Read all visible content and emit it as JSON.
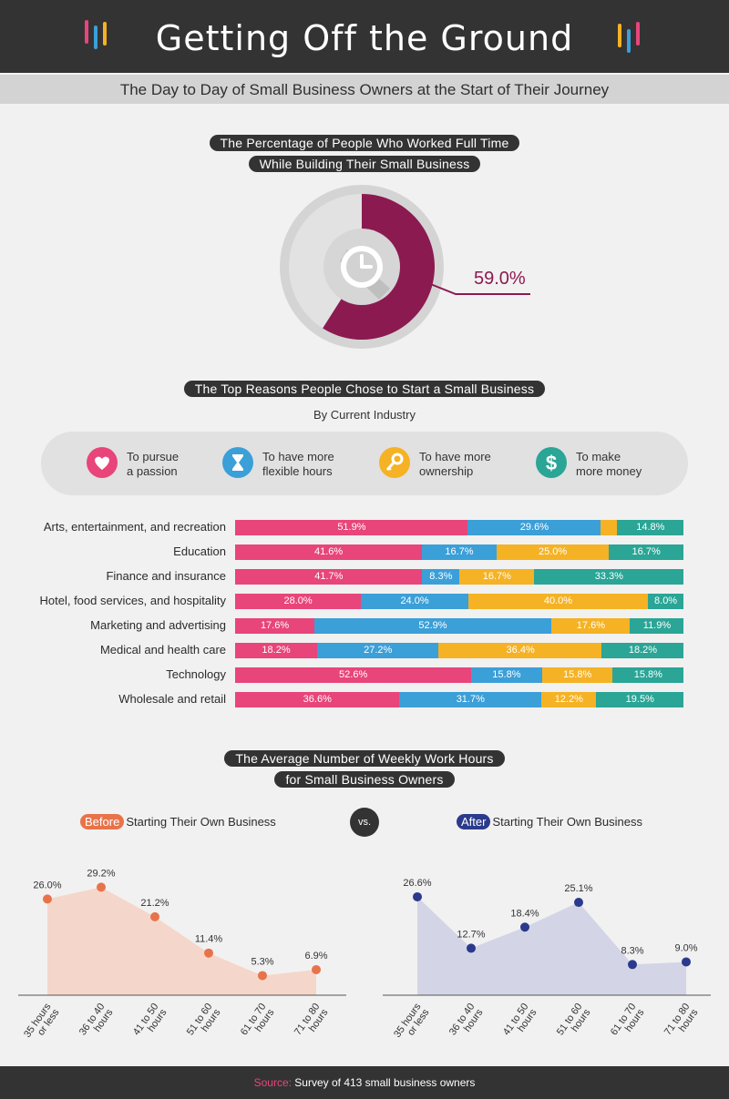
{
  "header": {
    "title": "Getting Off the Ground",
    "subtitle": "The Day to Day of Small Business Owners at the Start of Their Journey",
    "deco_colors": [
      "#e8457a",
      "#3b9fd8",
      "#f5b224",
      "#2aa596"
    ]
  },
  "section1": {
    "title_line1": "The Percentage of People Who Worked Full Time",
    "title_line2": "While Building Their Small Business"
  },
  "section2": {
    "title": "The Top Reasons People Chose to Start a Small Business",
    "subtitle": "By Current Industry",
    "legend": [
      {
        "line1": "To pursue",
        "line2": "a passion",
        "icon": "heart-icon",
        "color": "#e8457a"
      },
      {
        "line1": "To have more",
        "line2": "flexible hours",
        "icon": "hourglass-icon",
        "color": "#3b9fd8"
      },
      {
        "line1": "To have more",
        "line2": "ownership",
        "icon": "key-icon",
        "color": "#f5b224"
      },
      {
        "line1": "To make",
        "line2": "more money",
        "icon": "dollar-icon",
        "color": "#2aa596"
      }
    ]
  },
  "section3": {
    "title_line1": "The Average Number of Weekly Work Hours",
    "title_line2": "for Small Business Owners",
    "before_tag": "Before",
    "before_text": "Starting Their Own Business",
    "after_tag": "After",
    "after_text": "Starting Their Own Business",
    "vs": "vs."
  },
  "footer": {
    "source_label": "Source:",
    "source_text": "Survey of 413 small business owners"
  },
  "chart_data": [
    {
      "type": "pie",
      "labels": [
        "Worked full time"
      ],
      "values": [
        59.0
      ],
      "value_label": "59.0%",
      "color": "#8b1a50"
    },
    {
      "type": "bar",
      "stacked": true,
      "orientation": "horizontal",
      "categories": [
        "Arts, entertainment, and recreation",
        "Education",
        "Finance and insurance",
        "Hotel, food services, and hospitality",
        "Marketing and advertising",
        "Medical and health care",
        "Technology",
        "Wholesale and retail"
      ],
      "series": [
        {
          "name": "To pursue a passion",
          "color": "#e8457a",
          "values": [
            51.9,
            41.6,
            41.7,
            28.0,
            17.6,
            18.2,
            52.6,
            36.6
          ]
        },
        {
          "name": "To have more flexible hours",
          "color": "#3b9fd8",
          "values": [
            29.6,
            16.7,
            8.3,
            24.0,
            52.9,
            27.2,
            15.8,
            31.7
          ]
        },
        {
          "name": "To have more ownership",
          "color": "#f5b224",
          "values": [
            3.7,
            25.0,
            16.7,
            40.0,
            17.6,
            36.4,
            15.8,
            12.2
          ]
        },
        {
          "name": "To make more money",
          "color": "#2aa596",
          "values": [
            14.8,
            16.7,
            33.3,
            8.0,
            11.9,
            18.2,
            15.8,
            19.5
          ]
        }
      ],
      "value_labels": [
        [
          "51.9%",
          "29.6%",
          "",
          "14.8%"
        ],
        [
          "41.6%",
          "16.7%",
          "25.0%",
          "16.7%"
        ],
        [
          "41.7%",
          "8.3%",
          "16.7%",
          "33.3%"
        ],
        [
          "28.0%",
          "24.0%",
          "40.0%",
          "8.0%"
        ],
        [
          "17.6%",
          "52.9%",
          "17.6%",
          "11.9%"
        ],
        [
          "18.2%",
          "27.2%",
          "36.4%",
          "18.2%"
        ],
        [
          "52.6%",
          "15.8%",
          "15.8%",
          "15.8%"
        ],
        [
          "36.6%",
          "31.7%",
          "12.2%",
          "19.5%"
        ]
      ]
    },
    {
      "type": "area",
      "categories": [
        [
          "35 hours",
          "or less"
        ],
        [
          "36 to 40",
          "hours"
        ],
        [
          "41 to 50",
          "hours"
        ],
        [
          "51 to 60",
          "hours"
        ],
        [
          "61 to 70",
          "hours"
        ],
        [
          "71 to 80",
          "hours"
        ]
      ],
      "values": [
        26.0,
        29.2,
        21.2,
        11.4,
        5.3,
        6.9
      ],
      "value_labels": [
        "26.0%",
        "29.2%",
        "21.2%",
        "11.4%",
        "5.3%",
        "6.9%"
      ],
      "line_color": "#e8734a",
      "fill_color": "#f4d7ca",
      "ylim": [
        0,
        32
      ]
    },
    {
      "type": "area",
      "categories": [
        [
          "35 hours",
          "or less"
        ],
        [
          "36 to 40",
          "hours"
        ],
        [
          "41 to 50",
          "hours"
        ],
        [
          "51 to 60",
          "hours"
        ],
        [
          "61 to 70",
          "hours"
        ],
        [
          "71 to 80",
          "hours"
        ]
      ],
      "values": [
        26.6,
        12.7,
        18.4,
        25.1,
        8.3,
        9.0
      ],
      "value_labels": [
        "26.6%",
        "12.7%",
        "18.4%",
        "25.1%",
        "8.3%",
        "9.0%"
      ],
      "line_color": "#2b3a8c",
      "fill_color": "#d3d5e6",
      "ylim": [
        0,
        32
      ]
    }
  ]
}
